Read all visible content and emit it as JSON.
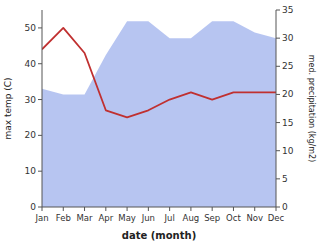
{
  "chart_data": {
    "type": "line",
    "xlabel": "date (month)",
    "ylabel": "max temp (C)",
    "y2label": "med. precipitation (kg/m2)",
    "categories": [
      "Jan",
      "Feb",
      "Mar",
      "Apr",
      "May",
      "Jun",
      "Jul",
      "Aug",
      "Sep",
      "Oct",
      "Nov",
      "Dec"
    ],
    "series": [
      {
        "type": "line",
        "color": "#c03030",
        "values": [
          44,
          50,
          43,
          27,
          25,
          27,
          30,
          32,
          30,
          32,
          32,
          32
        ]
      },
      {
        "type": "area",
        "axis": "y2",
        "color": "#aabbee",
        "values": [
          21,
          20,
          20,
          27,
          33,
          33,
          30,
          30,
          33,
          33,
          31,
          30
        ]
      }
    ],
    "ylim": [
      0,
      55
    ],
    "yticks": [
      0,
      10,
      20,
      30,
      40,
      50
    ],
    "y2lim": [
      0,
      35
    ],
    "y2ticks": [
      0,
      5,
      10,
      15,
      20,
      25,
      30,
      35
    ],
    "grid": false
  }
}
